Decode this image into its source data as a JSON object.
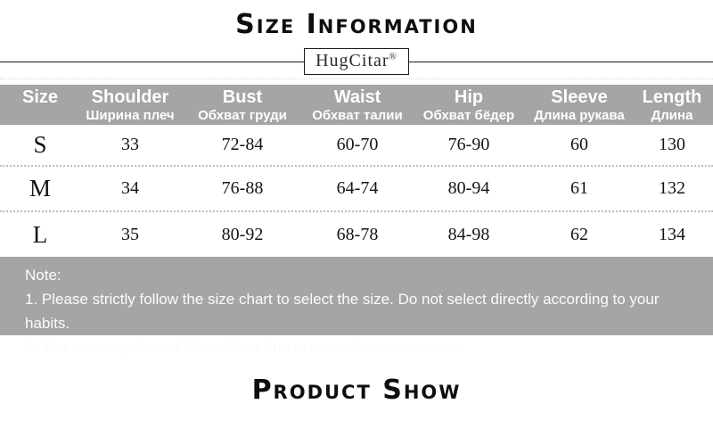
{
  "page": {
    "title": "Size Information",
    "footer_title": "Product Show",
    "brand": "HugCitar",
    "brand_mark": "®"
  },
  "colors": {
    "gray_band": "#a5a5a5",
    "header_text": "#ffffff",
    "body_text": "#141414",
    "rule_line": "#1a1a1a",
    "dotted_divider": "#bdbdbd"
  },
  "size_table": {
    "columns": [
      {
        "label": "Size",
        "sublabel": ""
      },
      {
        "label": "Shoulder",
        "sublabel": "Ширина плеч"
      },
      {
        "label": "Bust",
        "sublabel": "Обхват груди"
      },
      {
        "label": "Waist",
        "sublabel": "Обхват талии"
      },
      {
        "label": "Hip",
        "sublabel": "Обхват бёдер"
      },
      {
        "label": "Sleeve",
        "sublabel": "Длина рукава"
      },
      {
        "label": "Length",
        "sublabel": "Длина"
      }
    ],
    "rows": [
      {
        "size": "S",
        "values": [
          "33",
          "72-84",
          "60-70",
          "76-90",
          "60",
          "130"
        ]
      },
      {
        "size": "M",
        "values": [
          "34",
          "76-88",
          "64-74",
          "80-94",
          "61",
          "132"
        ]
      },
      {
        "size": "L",
        "values": [
          "35",
          "80-92",
          "68-78",
          "84-98",
          "62",
          "134"
        ]
      }
    ]
  },
  "note": {
    "heading": "Note:",
    "lines": [
      "1. Please strictly follow the size chart to select the size. Do not select directly according to your habits.",
      "2. The size may have 1-3cm differs due to manual measurement."
    ]
  }
}
